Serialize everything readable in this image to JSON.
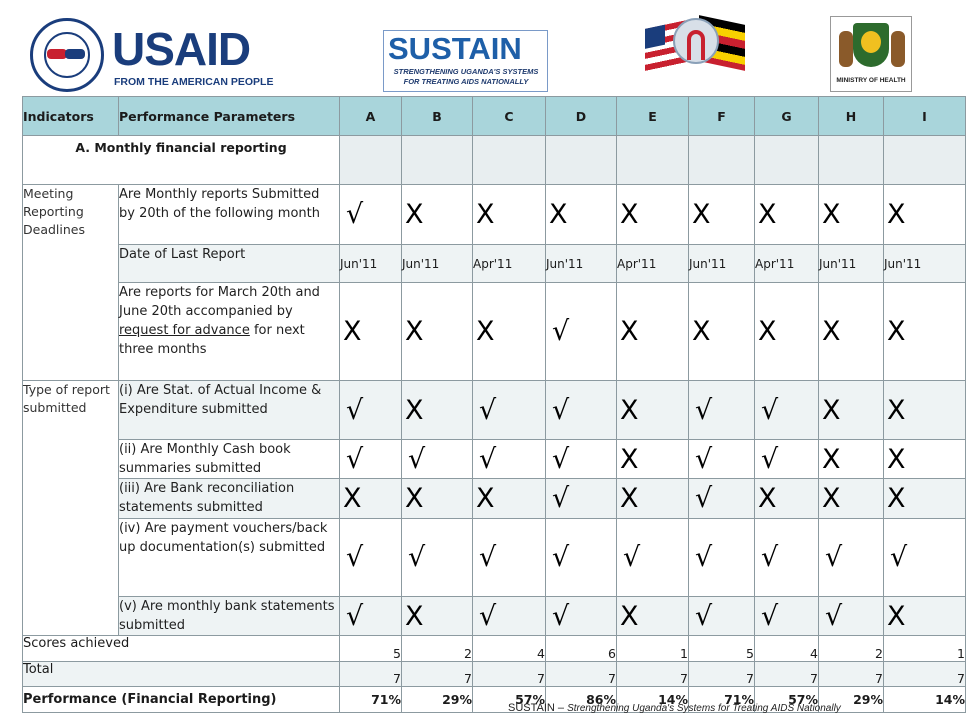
{
  "logos": {
    "usaid_word": "USAID",
    "usaid_tagline": "FROM THE AMERICAN PEOPLE",
    "sustain_word": "SUSTAIN",
    "sustain_tagline": "STRENGTHENING UGANDA'S SYSTEMS FOR TREATING AIDS NATIONALLY",
    "moh_caption": "MINISTRY OF HEALTH"
  },
  "table": {
    "headers": [
      "Indicators",
      "Performance Parameters",
      "A",
      "B",
      "C",
      "D",
      "E",
      "F",
      "G",
      "H",
      "I"
    ],
    "section_title": "A. Monthly financial reporting",
    "indicator_1": "Meeting Reporting Deadlines",
    "indicator_2": "Type of report submitted",
    "rows": [
      {
        "param": "Are Monthly reports Submitted by 20th of the following month",
        "values": [
          "√",
          "X",
          "X",
          "X",
          "X",
          "X",
          "X",
          "X",
          "X"
        ]
      },
      {
        "param": "Date of Last Report",
        "values": [
          "Jun'11",
          "Jun'11",
          "Apr'11",
          "Jun'11",
          "Apr'11",
          "Jun'11",
          "Apr'11",
          "Jun'11",
          "Jun'11"
        ]
      },
      {
        "param_part1": "Are reports for March 20th and June 20th accompanied by ",
        "param_underlined": "request for advance",
        "param_part2": " for next three months",
        "values": [
          "X",
          "X",
          "X",
          "√",
          "X",
          "X",
          "X",
          "X",
          "X"
        ]
      },
      {
        "param": "(i) Are Stat. of Actual Income & Expenditure submitted",
        "values": [
          "√",
          "X",
          "√",
          "√",
          "X",
          "√",
          "√",
          "X",
          "X"
        ]
      },
      {
        "param": "(ii) Are Monthly Cash book summaries submitted",
        "values": [
          "√",
          "√",
          "√",
          "√",
          "X",
          "√",
          "√",
          "X",
          "X"
        ]
      },
      {
        "param": "(iii) Are Bank reconciliation statements submitted",
        "values": [
          "X",
          "X",
          "X",
          "√",
          "X",
          "√",
          "X",
          "X",
          "X"
        ]
      },
      {
        "param": "(iv) Are payment vouchers/back up documentation(s) submitted",
        "values": [
          "√",
          "√",
          "√",
          "√",
          "√",
          "√",
          "√",
          "√",
          "√"
        ]
      },
      {
        "param": "(v) Are monthly bank statements submitted",
        "values": [
          "√",
          "X",
          "√",
          "√",
          "X",
          "√",
          "√",
          "√",
          "X"
        ]
      }
    ],
    "scores_label": "Scores achieved",
    "scores": [
      "5",
      "2",
      "4",
      "6",
      "1",
      "5",
      "4",
      "2",
      "1"
    ],
    "total_label": "Total",
    "totals": [
      "7",
      "7",
      "7",
      "7",
      "7",
      "7",
      "7",
      "7",
      "7"
    ],
    "performance_label": "Performance (Financial Reporting)",
    "performance": [
      "71%",
      "29%",
      "57%",
      "86%",
      "14%",
      "71%",
      "57%",
      "29%",
      "14%"
    ]
  },
  "footer": {
    "brand": "SUSTAIN",
    "dash": " – ",
    "tagline": "Strengthening Uganda's Systems for Treating AIDS Nationally"
  }
}
